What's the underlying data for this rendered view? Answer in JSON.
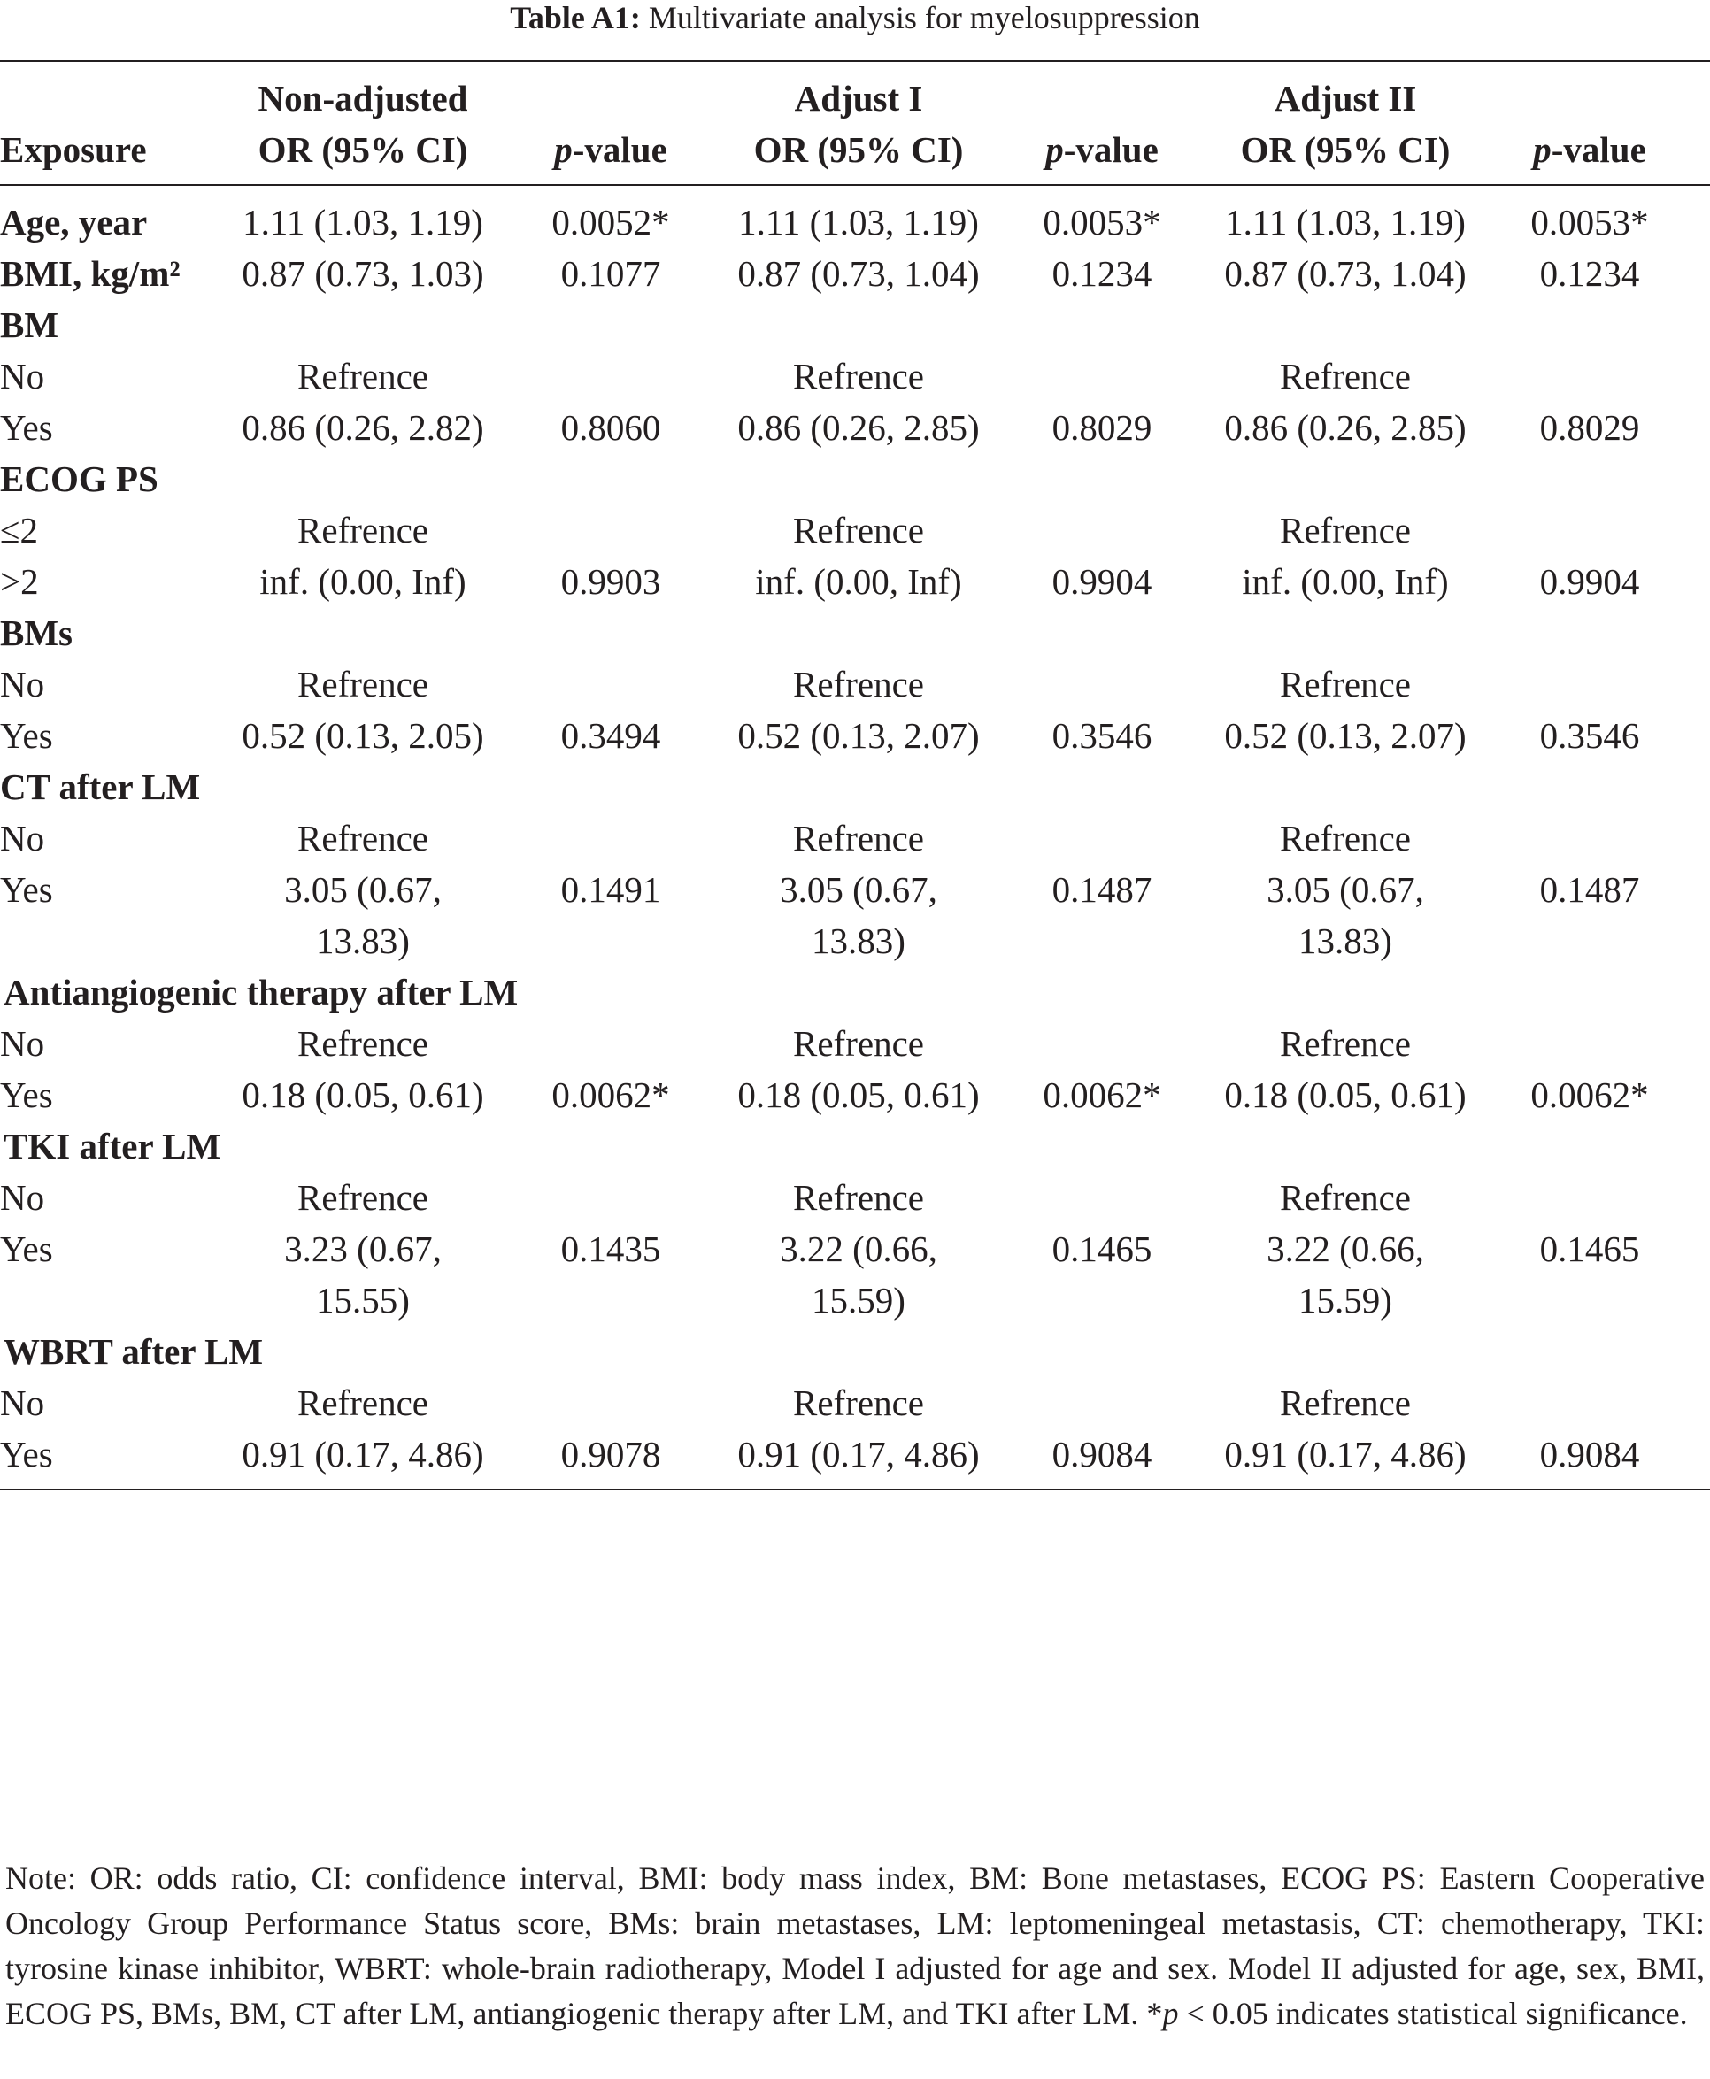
{
  "caption": {
    "label": "Table A1:",
    "text": "Multivariate analysis for myelosuppression"
  },
  "headers": {
    "exposure": "Exposure",
    "model1_line1": "Non-adjusted",
    "model1_line2": "OR (95% CI)",
    "model2_line1": "Adjust I",
    "model2_line2": "OR (95% CI)",
    "model3_line1": "Adjust II",
    "model3_line2": "OR (95% CI)",
    "p_italic": "p",
    "p_rest": "-value"
  },
  "rows": [
    {
      "kind": "var",
      "label": "Age, year",
      "or1": "1.11 (1.03, 1.19)",
      "p1": "0.0052*",
      "or2": "1.11 (1.03, 1.19)",
      "p2": "0.0053*",
      "or3": "1.11 (1.03, 1.19)",
      "p3": "0.0053*"
    },
    {
      "kind": "var",
      "label": "BMI, kg/m²",
      "or1": "0.87 (0.73, 1.03)",
      "p1": "0.1077",
      "or2": "0.87 (0.73, 1.04)",
      "p2": "0.1234",
      "or3": "0.87 (0.73, 1.04)",
      "p3": "0.1234"
    },
    {
      "kind": "var",
      "label": "BM"
    },
    {
      "kind": "lvl",
      "label": "No",
      "or1": "Refrence",
      "or2": "Refrence",
      "or3": "Refrence"
    },
    {
      "kind": "lvl",
      "label": "Yes",
      "or1": "0.86 (0.26, 2.82)",
      "p1": "0.8060",
      "or2": "0.86 (0.26, 2.85)",
      "p2": "0.8029",
      "or3": "0.86 (0.26, 2.85)",
      "p3": "0.8029"
    },
    {
      "kind": "var",
      "label": "ECOG PS"
    },
    {
      "kind": "lvl",
      "label": "≤2",
      "or1": "Refrence",
      "or2": "Refrence",
      "or3": "Refrence"
    },
    {
      "kind": "lvl",
      "label": ">2",
      "or1": "inf. (0.00, Inf)",
      "p1": "0.9903",
      "or2": "inf. (0.00, Inf)",
      "p2": "0.9904",
      "or3": "inf. (0.00, Inf)",
      "p3": "0.9904"
    },
    {
      "kind": "var",
      "label": "BMs"
    },
    {
      "kind": "lvl",
      "label": "No",
      "or1": "Refrence",
      "or2": "Refrence",
      "or3": "Refrence"
    },
    {
      "kind": "lvl",
      "label": "Yes",
      "or1": "0.52 (0.13, 2.05)",
      "p1": "0.3494",
      "or2": "0.52 (0.13, 2.07)",
      "p2": "0.3546",
      "or3": "0.52 (0.13, 2.07)",
      "p3": "0.3546"
    },
    {
      "kind": "var",
      "label": "CT after LM"
    },
    {
      "kind": "lvl",
      "label": "No",
      "or1": "Refrence",
      "or2": "Refrence",
      "or3": "Refrence"
    },
    {
      "kind": "lvl",
      "label": "Yes",
      "or1": "3.05 (0.67, 13.83)",
      "p1": "0.1491",
      "or2": "3.05 (0.67, 13.83)",
      "p2": "0.1487",
      "or3": "3.05 (0.67, 13.83)",
      "p3": "0.1487"
    },
    {
      "kind": "var",
      "wide": true,
      "label": "Antiangiogenic therapy after LM"
    },
    {
      "kind": "lvl",
      "label": "No",
      "or1": "Refrence",
      "or2": "Refrence",
      "or3": "Refrence"
    },
    {
      "kind": "lvl",
      "label": "Yes",
      "or1": "0.18 (0.05, 0.61)",
      "p1": "0.0062*",
      "or2": "0.18 (0.05, 0.61)",
      "p2": "0.0062*",
      "or3": "0.18 (0.05, 0.61)",
      "p3": "0.0062*"
    },
    {
      "kind": "var",
      "wide": true,
      "label": "TKI after LM"
    },
    {
      "kind": "lvl",
      "label": "No",
      "or1": "Refrence",
      "or2": "Refrence",
      "or3": "Refrence"
    },
    {
      "kind": "lvl",
      "label": "Yes",
      "or1": "3.23 (0.67, 15.55)",
      "p1": "0.1435",
      "or2": "3.22 (0.66, 15.59)",
      "p2": "0.1465",
      "or3": "3.22 (0.66, 15.59)",
      "p3": "0.1465"
    },
    {
      "kind": "var",
      "wide": true,
      "label": "WBRT after LM"
    },
    {
      "kind": "lvl",
      "label": "No",
      "or1": "Refrence",
      "or2": "Refrence",
      "or3": "Refrence"
    },
    {
      "kind": "lvl",
      "label": "Yes",
      "or1": "0.91 (0.17, 4.86)",
      "p1": "0.9078",
      "or2": "0.91 (0.17, 4.86)",
      "p2": "0.9084",
      "or3": "0.91 (0.17, 4.86)",
      "p3": "0.9084"
    }
  ],
  "note": {
    "main": "Note: OR: odds ratio, CI: confidence interval, BMI: body mass index, BM: Bone metastases, ECOG PS: Eastern Cooperative Oncology Group Performance Status score, BMs: brain metastases, LM: leptomeningeal metastasis, CT: chemotherapy, TKI: tyrosine kinase inhibitor, WBRT: whole-brain radiotherapy, Model I adjusted for age and sex. Model II adjusted for age, sex, BMI, ECOG PS, BMs, BM, CT after LM, antiangiogenic therapy after LM, and TKI after LM. *",
    "p_italic": "p",
    "tail": " < 0.05 indicates statistical significance."
  }
}
